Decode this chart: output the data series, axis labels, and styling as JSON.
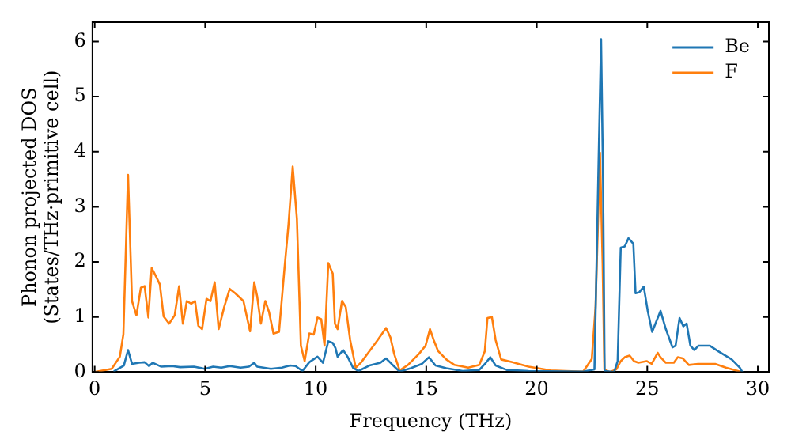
{
  "chart_data": {
    "type": "line",
    "xlabel": "Frequency (THz)",
    "ylabel": "Phonon projected DOS\n(States/THz·primitive cell)",
    "xlim": [
      -0.1,
      30.5
    ],
    "ylim": [
      0,
      6.35
    ],
    "xticks": [
      0,
      5,
      10,
      15,
      20,
      25,
      30
    ],
    "yticks": [
      0,
      1,
      2,
      3,
      4,
      5,
      6
    ],
    "grid": false,
    "legend": "top right",
    "marker": "none",
    "line_style": "solid",
    "series": [
      {
        "name": "Be",
        "color": "#1f77b4",
        "x": [
          0.89,
          1.32,
          1.51,
          1.69,
          2.01,
          2.26,
          2.46,
          2.63,
          3.0,
          3.5,
          3.87,
          4.49,
          4.98,
          5.36,
          5.73,
          6.11,
          6.6,
          6.98,
          7.22,
          7.35,
          7.97,
          8.47,
          8.84,
          9.09,
          9.4,
          9.71,
          10.08,
          10.33,
          10.57,
          10.77,
          10.9,
          10.99,
          11.24,
          11.44,
          11.69,
          11.93,
          12.43,
          12.93,
          13.18,
          13.43,
          13.8,
          14.3,
          14.8,
          15.12,
          15.42,
          15.91,
          16.65,
          17.4,
          17.7,
          17.9,
          18.14,
          18.64,
          19.63,
          22.1,
          22.61,
          22.78,
          22.91,
          23.0,
          23.07,
          23.5,
          23.66,
          23.8,
          23.98,
          24.15,
          24.37,
          24.47,
          24.64,
          24.84,
          25.02,
          25.22,
          25.6,
          25.84,
          26.14,
          26.28,
          26.46,
          26.63,
          26.78,
          26.95,
          27.13,
          27.32,
          27.82,
          28.2,
          28.82,
          29.19,
          29.3
        ],
        "values": [
          0.02,
          0.12,
          0.4,
          0.15,
          0.17,
          0.18,
          0.11,
          0.17,
          0.1,
          0.11,
          0.09,
          0.1,
          0.06,
          0.1,
          0.08,
          0.11,
          0.08,
          0.1,
          0.17,
          0.1,
          0.06,
          0.08,
          0.12,
          0.11,
          0.02,
          0.18,
          0.28,
          0.17,
          0.56,
          0.53,
          0.43,
          0.28,
          0.4,
          0.28,
          0.08,
          0.02,
          0.12,
          0.17,
          0.25,
          0.15,
          0.01,
          0.07,
          0.15,
          0.27,
          0.12,
          0.07,
          0.02,
          0.04,
          0.17,
          0.27,
          0.12,
          0.04,
          0.02,
          0.01,
          0.05,
          3.48,
          6.04,
          3.48,
          0.02,
          0,
          0.2,
          2.26,
          2.28,
          2.43,
          2.33,
          1.43,
          1.45,
          1.55,
          1.11,
          0.73,
          1.11,
          0.78,
          0.45,
          0.48,
          0.98,
          0.83,
          0.88,
          0.48,
          0.4,
          0.48,
          0.48,
          0.38,
          0.23,
          0.08,
          0
        ]
      },
      {
        "name": "F",
        "color": "#ff7f0e",
        "x": [
          0,
          0.77,
          1.14,
          1.3,
          1.51,
          1.69,
          1.89,
          2.09,
          2.26,
          2.43,
          2.58,
          2.77,
          2.95,
          3.12,
          3.37,
          3.62,
          3.82,
          3.99,
          4.17,
          4.37,
          4.54,
          4.69,
          4.86,
          5.06,
          5.24,
          5.43,
          5.61,
          5.86,
          6.11,
          6.36,
          6.73,
          7.03,
          7.22,
          7.35,
          7.52,
          7.72,
          7.89,
          8.09,
          8.34,
          8.59,
          8.77,
          8.96,
          9.15,
          9.33,
          9.5,
          9.71,
          9.91,
          10.08,
          10.25,
          10.4,
          10.57,
          10.77,
          10.87,
          10.99,
          11.19,
          11.36,
          11.56,
          11.81,
          12.06,
          12.43,
          12.8,
          13.18,
          13.38,
          13.55,
          13.8,
          14.17,
          14.67,
          14.97,
          15.17,
          15.34,
          15.54,
          15.91,
          16.28,
          16.9,
          17.4,
          17.65,
          17.77,
          17.97,
          18.14,
          18.39,
          18.89,
          19.63,
          20.63,
          21.3,
          22.1,
          22.49,
          22.66,
          22.86,
          22.98,
          23.06,
          23.3,
          23.6,
          23.8,
          23.98,
          24.2,
          24.4,
          24.6,
          24.97,
          25.2,
          25.47,
          25.6,
          25.84,
          26.2,
          26.38,
          26.6,
          26.88,
          27.3,
          28.07,
          28.56,
          29.19
        ],
        "values": [
          0,
          0.06,
          0.28,
          0.69,
          3.58,
          1.29,
          1.03,
          1.53,
          1.56,
          0.99,
          1.89,
          1.74,
          1.59,
          1.01,
          0.88,
          1.03,
          1.56,
          0.88,
          1.29,
          1.24,
          1.29,
          0.84,
          0.78,
          1.33,
          1.29,
          1.63,
          0.78,
          1.18,
          1.51,
          1.43,
          1.29,
          0.74,
          1.63,
          1.38,
          0.88,
          1.29,
          1.09,
          0.7,
          0.73,
          1.89,
          2.68,
          3.73,
          2.78,
          0.48,
          0.2,
          0.7,
          0.68,
          0.99,
          0.96,
          0.48,
          1.98,
          1.79,
          0.88,
          0.78,
          1.29,
          1.18,
          0.58,
          0.08,
          0.18,
          0.38,
          0.58,
          0.8,
          0.63,
          0.33,
          0.03,
          0.13,
          0.33,
          0.48,
          0.78,
          0.58,
          0.38,
          0.23,
          0.13,
          0.08,
          0.13,
          0.38,
          0.98,
          1.0,
          0.58,
          0.23,
          0.18,
          0.1,
          0.03,
          0.02,
          0.01,
          0.24,
          1.18,
          3.98,
          1.97,
          0.05,
          0,
          0.05,
          0.2,
          0.27,
          0.3,
          0.2,
          0.17,
          0.2,
          0.15,
          0.35,
          0.27,
          0.17,
          0.17,
          0.27,
          0.25,
          0.13,
          0.15,
          0.15,
          0.08,
          0.01
        ]
      }
    ]
  }
}
